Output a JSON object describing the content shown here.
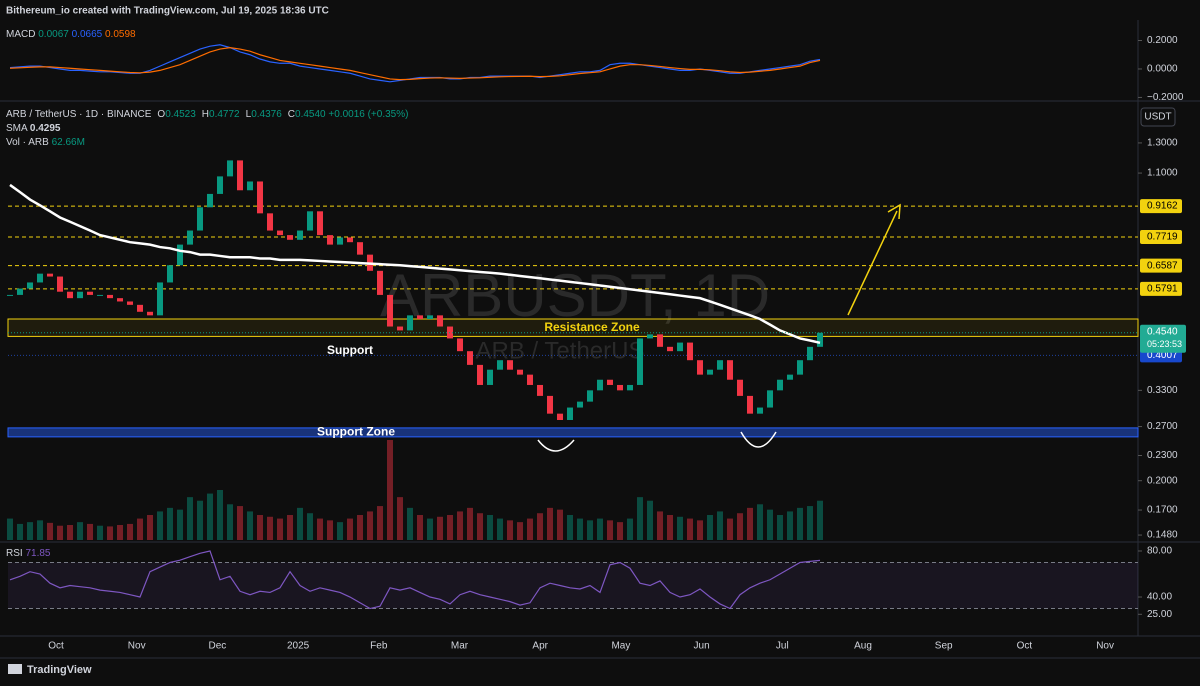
{
  "header": {
    "attribution": "Bithereum_io created with TradingView.com, Jul 19, 2025 18:36 UTC",
    "footer": "TradingView"
  },
  "chart_data": {
    "type": "candlestick",
    "symbol": "ARB / TetherUS · 1D · BINANCE",
    "ohlc": [
      {
        "label": "O",
        "value": "0.4523"
      },
      {
        "label": "H",
        "value": "0.4772"
      },
      {
        "label": "L",
        "value": "0.4376"
      },
      {
        "label": "C",
        "value": "0.4540"
      }
    ],
    "change": "+0.0016 (+0.35%)",
    "sma": {
      "label": "SMA",
      "value": "0.4295"
    },
    "volume_legend": {
      "label": "Vol · ARB",
      "value": "62.66M"
    },
    "currency": "USDT",
    "watermark": "ARBUSDT, 1D",
    "watermark_sub": "ARB / TetherUS",
    "x_labels": [
      "Oct",
      "Nov",
      "Dec",
      "2025",
      "Feb",
      "Mar",
      "Apr",
      "May",
      "Jun",
      "Jul",
      "Aug",
      "Sep",
      "Oct",
      "Nov"
    ],
    "closes": [
      0.56,
      0.58,
      0.6,
      0.63,
      0.62,
      0.57,
      0.55,
      0.57,
      0.56,
      0.56,
      0.55,
      0.54,
      0.53,
      0.51,
      0.5,
      0.6,
      0.66,
      0.74,
      0.8,
      0.91,
      0.98,
      1.08,
      1.18,
      1.0,
      1.05,
      0.88,
      0.8,
      0.78,
      0.76,
      0.8,
      0.89,
      0.78,
      0.74,
      0.77,
      0.75,
      0.7,
      0.64,
      0.56,
      0.47,
      0.46,
      0.5,
      0.49,
      0.5,
      0.47,
      0.44,
      0.41,
      0.38,
      0.34,
      0.37,
      0.39,
      0.37,
      0.36,
      0.34,
      0.32,
      0.29,
      0.28,
      0.3,
      0.31,
      0.33,
      0.35,
      0.34,
      0.33,
      0.34,
      0.44,
      0.45,
      0.42,
      0.41,
      0.43,
      0.39,
      0.36,
      0.37,
      0.39,
      0.35,
      0.32,
      0.29,
      0.3,
      0.33,
      0.35,
      0.36,
      0.39,
      0.42,
      0.454
    ],
    "sma_values": [
      1.03,
      0.99,
      0.95,
      0.92,
      0.89,
      0.86,
      0.84,
      0.82,
      0.8,
      0.78,
      0.77,
      0.76,
      0.75,
      0.745,
      0.74,
      0.73,
      0.725,
      0.715,
      0.71,
      0.7,
      0.7,
      0.695,
      0.69,
      0.69,
      0.69,
      0.685,
      0.685,
      0.68,
      0.68,
      0.68,
      0.678,
      0.676,
      0.674,
      0.672,
      0.67,
      0.668,
      0.666,
      0.664,
      0.662,
      0.66,
      0.657,
      0.654,
      0.651,
      0.648,
      0.645,
      0.642,
      0.639,
      0.636,
      0.633,
      0.63,
      0.626,
      0.622,
      0.618,
      0.614,
      0.61,
      0.606,
      0.602,
      0.598,
      0.594,
      0.59,
      0.586,
      0.582,
      0.578,
      0.574,
      0.57,
      0.566,
      0.562,
      0.558,
      0.554,
      0.55,
      0.54,
      0.53,
      0.52,
      0.51,
      0.5,
      0.49,
      0.475,
      0.46,
      0.45,
      0.44,
      0.435,
      0.4295
    ],
    "volumes": [
      60,
      45,
      50,
      55,
      48,
      40,
      42,
      50,
      45,
      40,
      38,
      42,
      45,
      60,
      70,
      80,
      90,
      85,
      120,
      110,
      130,
      140,
      100,
      95,
      80,
      70,
      65,
      60,
      70,
      90,
      75,
      60,
      55,
      50,
      60,
      70,
      80,
      95,
      280,
      120,
      90,
      70,
      60,
      65,
      70,
      80,
      90,
      75,
      70,
      60,
      55,
      50,
      60,
      75,
      90,
      85,
      70,
      60,
      55,
      60,
      55,
      50,
      60,
      120,
      110,
      80,
      70,
      65,
      60,
      55,
      70,
      80,
      60,
      75,
      90,
      100,
      85,
      70,
      80,
      90,
      95,
      110
    ],
    "ylim": [
      0.144,
      1.64
    ],
    "log_scale": true,
    "yticks": [
      {
        "value": 1.3,
        "label": "1.3000"
      },
      {
        "value": 1.1,
        "label": "1.1000"
      },
      {
        "value": 0.33,
        "label": "0.3300"
      },
      {
        "value": 0.27,
        "label": "0.2700"
      },
      {
        "value": 0.23,
        "label": "0.2300"
      },
      {
        "value": 0.2,
        "label": "0.2000"
      },
      {
        "value": 0.17,
        "label": "0.1700"
      },
      {
        "value": 0.148,
        "label": "0.1480"
      }
    ],
    "levels": [
      0.9162,
      0.7719,
      0.6587,
      0.5791
    ],
    "level_color": "#f2d20f",
    "support_level": 0.4007,
    "last_price": {
      "value": 0.454,
      "label": "0.4540"
    },
    "countdown": "05:23:53",
    "resistance_zone": {
      "label": "Resistance Zone",
      "range": [
        0.445,
        0.49
      ]
    },
    "support_zone": {
      "label": "Support Zone",
      "range": [
        0.255,
        0.268
      ]
    },
    "support_label": "Support",
    "up_color": "#089981",
    "down_color": "#f23645",
    "macd": {
      "title": "MACD",
      "legend": [
        "0.0067",
        "0.0665",
        "0.0598"
      ],
      "ylim": [
        -0.218,
        0.309
      ],
      "yticks": [
        {
          "value": 0.2,
          "label": "0.2000"
        },
        {
          "value": 0,
          "label": "0.0000"
        },
        {
          "value": -0.2,
          "label": "−0.2000"
        }
      ],
      "macd_color": "#2962ff",
      "signal_color": "#ff6d00",
      "macd_values": [
        0.01,
        0.015,
        0.02,
        0.02,
        0.01,
        0.0,
        -0.01,
        -0.01,
        -0.015,
        -0.02,
        -0.02,
        -0.025,
        -0.03,
        -0.03,
        -0.01,
        0.02,
        0.05,
        0.08,
        0.11,
        0.14,
        0.16,
        0.17,
        0.15,
        0.12,
        0.1,
        0.07,
        0.05,
        0.04,
        0.04,
        0.02,
        0.01,
        0.0,
        -0.01,
        -0.02,
        -0.03,
        -0.05,
        -0.07,
        -0.08,
        -0.09,
        -0.08,
        -0.07,
        -0.06,
        -0.06,
        -0.06,
        -0.07,
        -0.07,
        -0.06,
        -0.06,
        -0.05,
        -0.05,
        -0.05,
        -0.05,
        -0.05,
        -0.06,
        -0.05,
        -0.04,
        -0.03,
        -0.02,
        -0.02,
        -0.01,
        0.03,
        0.04,
        0.04,
        0.03,
        0.02,
        0.01,
        0.0,
        -0.01,
        -0.01,
        0.0,
        -0.01,
        -0.02,
        -0.03,
        -0.03,
        -0.02,
        -0.01,
        0.0,
        0.01,
        0.02,
        0.03,
        0.055,
        0.0665
      ],
      "signal_values": [
        0.005,
        0.008,
        0.012,
        0.015,
        0.015,
        0.01,
        0.005,
        0.0,
        -0.005,
        -0.01,
        -0.015,
        -0.02,
        -0.025,
        -0.027,
        -0.022,
        -0.01,
        0.01,
        0.03,
        0.06,
        0.09,
        0.12,
        0.14,
        0.15,
        0.14,
        0.125,
        0.1,
        0.08,
        0.06,
        0.05,
        0.04,
        0.03,
        0.02,
        0.01,
        0.0,
        -0.01,
        -0.025,
        -0.04,
        -0.055,
        -0.07,
        -0.075,
        -0.073,
        -0.068,
        -0.064,
        -0.062,
        -0.064,
        -0.066,
        -0.064,
        -0.062,
        -0.058,
        -0.055,
        -0.053,
        -0.052,
        -0.051,
        -0.054,
        -0.052,
        -0.048,
        -0.04,
        -0.032,
        -0.026,
        -0.02,
        0.0,
        0.02,
        0.03,
        0.03,
        0.025,
        0.018,
        0.01,
        0.003,
        -0.003,
        -0.003,
        -0.006,
        -0.012,
        -0.02,
        -0.025,
        -0.022,
        -0.016,
        -0.01,
        0.0,
        0.01,
        0.02,
        0.045,
        0.0598
      ]
    },
    "rsi": {
      "title": "RSI",
      "legend": "71.85",
      "ylim": [
        7,
        85.2
      ],
      "bands": [
        30,
        70
      ],
      "color": "#7e57c2",
      "yticks": [
        {
          "value": 80,
          "label": "80.00"
        },
        {
          "value": 40,
          "label": "40.00"
        },
        {
          "value": 25,
          "label": "25.00"
        }
      ],
      "values": [
        55,
        58,
        62,
        60,
        52,
        48,
        50,
        49,
        48,
        46,
        45,
        44,
        42,
        40,
        62,
        66,
        70,
        72,
        75,
        78,
        80,
        55,
        58,
        45,
        42,
        45,
        44,
        48,
        62,
        50,
        45,
        48,
        46,
        44,
        40,
        35,
        30,
        32,
        48,
        46,
        48,
        44,
        40,
        38,
        34,
        42,
        45,
        42,
        40,
        38,
        36,
        33,
        35,
        48,
        52,
        50,
        48,
        47,
        50,
        44,
        68,
        70,
        65,
        52,
        50,
        54,
        44,
        40,
        42,
        47,
        40,
        34,
        30,
        42,
        48,
        52,
        55,
        60,
        65,
        70,
        71,
        71.85
      ]
    }
  }
}
